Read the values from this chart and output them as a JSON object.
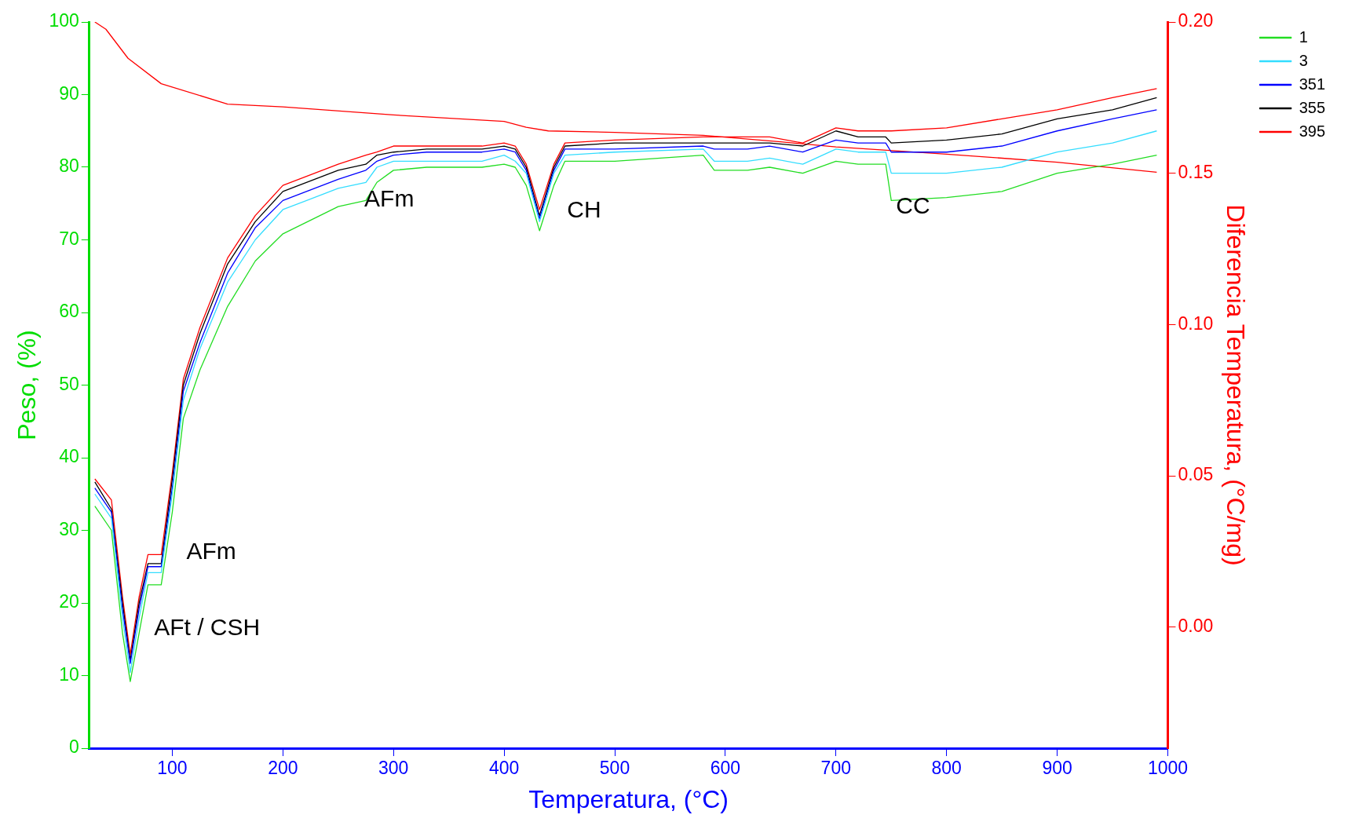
{
  "chart_data": {
    "type": "line",
    "xlabel": "Temperatura, (°C)",
    "ylabel": "Peso, (%)",
    "y2label": "Diferencia Temperatura, (°C/mg)",
    "x": [
      30,
      45,
      55,
      62,
      70,
      78,
      90,
      100,
      110,
      125,
      150,
      175,
      200,
      250,
      275,
      285,
      300,
      330,
      380,
      400,
      410,
      420,
      432,
      445,
      455,
      500,
      580,
      590,
      620,
      640,
      670,
      700,
      720,
      745,
      750,
      800,
      850,
      900,
      950,
      990
    ],
    "xlim": [
      25,
      1000
    ],
    "xticks": [
      100,
      200,
      300,
      400,
      500,
      600,
      700,
      800,
      900,
      1000
    ],
    "ylim": [
      0,
      100
    ],
    "yticks": [
      0,
      10,
      20,
      30,
      40,
      50,
      60,
      70,
      80,
      90,
      100
    ],
    "y2lim": [
      -0.04,
      0.2
    ],
    "y2ticks": [
      {
        "value": 0,
        "label": "0.00"
      },
      {
        "value": 0.05,
        "label": "0.05"
      },
      {
        "value": 0.1,
        "label": "0.10"
      },
      {
        "value": 0.15,
        "label": "0.15"
      },
      {
        "value": 0.2,
        "label": "0.20"
      }
    ],
    "grid": false,
    "legend": "top right",
    "marker": "none",
    "line_style": "solid",
    "series": [
      {
        "name": "1",
        "color": "#22dd22",
        "axis": "y2",
        "values": [
          0.04,
          0.032,
          -0.002,
          -0.018,
          -0.002,
          0.014,
          0.014,
          0.038,
          0.069,
          0.085,
          0.106,
          0.121,
          0.13,
          0.139,
          0.141,
          0.147,
          0.151,
          0.152,
          0.152,
          0.153,
          0.152,
          0.146,
          0.131,
          0.146,
          0.154,
          0.154,
          0.156,
          0.151,
          0.151,
          0.152,
          0.15,
          0.154,
          0.153,
          0.153,
          0.141,
          0.142,
          0.144,
          0.15,
          0.153,
          0.156
        ]
      },
      {
        "name": "3",
        "color": "#33ddff",
        "axis": "y2",
        "values": [
          0.044,
          0.036,
          0.003,
          -0.015,
          0.003,
          0.018,
          0.018,
          0.044,
          0.075,
          0.092,
          0.114,
          0.128,
          0.138,
          0.145,
          0.147,
          0.152,
          0.154,
          0.154,
          0.154,
          0.156,
          0.154,
          0.15,
          0.134,
          0.15,
          0.156,
          0.157,
          0.158,
          0.154,
          0.154,
          0.155,
          0.153,
          0.158,
          0.157,
          0.157,
          0.15,
          0.15,
          0.152,
          0.157,
          0.16,
          0.164
        ]
      },
      {
        "name": "351",
        "color": "#0000ff",
        "axis": "y2",
        "values": [
          0.046,
          0.038,
          0.006,
          -0.012,
          0.006,
          0.02,
          0.02,
          0.046,
          0.078,
          0.094,
          0.117,
          0.132,
          0.141,
          0.148,
          0.151,
          0.154,
          0.156,
          0.157,
          0.157,
          0.158,
          0.157,
          0.151,
          0.135,
          0.151,
          0.158,
          0.158,
          0.159,
          0.158,
          0.158,
          0.159,
          0.157,
          0.161,
          0.16,
          0.16,
          0.157,
          0.157,
          0.159,
          0.164,
          0.168,
          0.171
        ]
      },
      {
        "name": "355",
        "color": "#000000",
        "axis": "y2",
        "values": [
          0.048,
          0.039,
          0.008,
          -0.011,
          0.008,
          0.021,
          0.021,
          0.049,
          0.08,
          0.097,
          0.12,
          0.134,
          0.144,
          0.151,
          0.153,
          0.156,
          0.157,
          0.158,
          0.158,
          0.159,
          0.158,
          0.152,
          0.136,
          0.152,
          0.159,
          0.16,
          0.16,
          0.16,
          0.16,
          0.16,
          0.159,
          0.164,
          0.162,
          0.162,
          0.16,
          0.161,
          0.163,
          0.168,
          0.171,
          0.175
        ]
      },
      {
        "name": "395",
        "color": "#ff0000",
        "axis": "y2",
        "values": [
          0.049,
          0.042,
          0.01,
          -0.009,
          0.01,
          0.024,
          0.024,
          0.051,
          0.082,
          0.099,
          0.122,
          0.136,
          0.146,
          0.153,
          0.156,
          0.157,
          0.159,
          0.159,
          0.159,
          0.16,
          0.159,
          0.153,
          0.138,
          0.153,
          0.16,
          0.161,
          0.162,
          0.162,
          0.162,
          0.162,
          0.16,
          0.165,
          0.164,
          0.164,
          0.164,
          0.165,
          0.168,
          0.171,
          0.175,
          0.178
        ]
      },
      {
        "color": "#ff0000",
        "x": [
          30,
          40,
          60,
          90,
          150,
          200,
          300,
          400,
          420,
          440,
          500,
          580,
          650,
          700,
          800,
          900,
          990
        ],
        "values": [
          100,
          99,
          95,
          91.5,
          88.7,
          88.3,
          87.2,
          86.3,
          85.5,
          85,
          84.8,
          84.4,
          83.5,
          82.8,
          81.8,
          80.7,
          79.3
        ]
      }
    ],
    "annotations": [
      "AFt / CSH",
      "AFm",
      "AFm",
      "CH",
      "CC"
    ]
  }
}
